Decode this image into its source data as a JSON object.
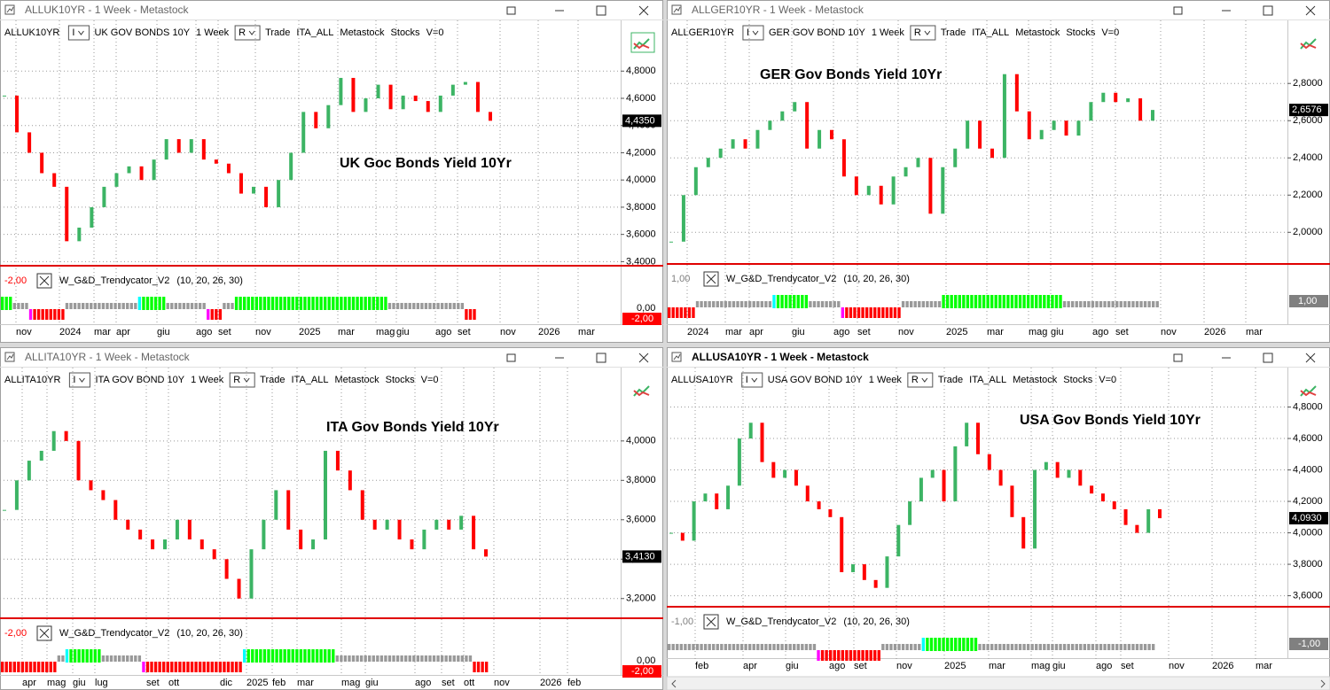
{
  "windows": [
    {
      "title": "ALLUK10YR - 1 Week - Metastock",
      "toolbar": [
        "ALLUK10YR",
        "I",
        "UK GOV BONDS 10Y",
        "1 Week",
        "R",
        "Trade",
        "ITA_ALL",
        "Metastock",
        "Stocks",
        "V=0"
      ],
      "chart_data": {
        "type": "candlestick",
        "annotation": "UK Goc Bonds Yield 10Yr",
        "up_color": "#3cb464",
        "down_color": "#ff0000",
        "closes": [
          4.62,
          4.35,
          4.2,
          4.05,
          3.95,
          3.55,
          3.65,
          3.8,
          3.95,
          4.05,
          4.1,
          4.0,
          4.15,
          4.3,
          4.2,
          4.3,
          4.15,
          4.12,
          4.05,
          3.9,
          3.95,
          3.8,
          4.0,
          4.2,
          4.5,
          4.38,
          4.55,
          4.75,
          4.5,
          4.6,
          4.7,
          4.52,
          4.62,
          4.58,
          4.5,
          4.62,
          4.7,
          4.72,
          4.5,
          4.435
        ],
        "ylim": [
          3.37,
          5.01
        ],
        "yticks": [
          {
            "value": 3.4,
            "label": "3,4000"
          },
          {
            "value": 3.6,
            "label": "3,6000"
          },
          {
            "value": 3.8,
            "label": "3,8000"
          },
          {
            "value": 4.0,
            "label": "4,0000"
          },
          {
            "value": 4.2,
            "label": "4,2000"
          },
          {
            "value": 4.4,
            "label": "4,4000"
          },
          {
            "value": 4.6,
            "label": "4,6000"
          },
          {
            "value": 4.8,
            "label": "4,8000"
          }
        ],
        "last_price": {
          "value": 4.435,
          "label": "4,4350"
        },
        "x_labels": [
          "nov",
          "2024",
          "mar",
          "apr",
          "giu",
          "ago",
          "set",
          "nov",
          "2025",
          "mar",
          "mag",
          "giu",
          "ago",
          "set",
          "nov",
          "2026",
          "mar"
        ],
        "indicator": {
          "left_label": {
            "value": -2,
            "label": "-2,00"
          },
          "name": "W_G&D_Trendycator_V2",
          "params": "(10, 20, 26, 30)",
          "ticks": [
            {
              "value": 0,
              "label": "0,00"
            }
          ],
          "last": {
            "value": -2,
            "label": "-2,00"
          },
          "last_color": "#ff0000",
          "segments": [
            {
              "color": "#00ff00",
              "count": 3
            },
            {
              "color": "#999999",
              "count": 4
            },
            {
              "color": "#ff00ff",
              "count": 1
            },
            {
              "color": "#ff0000",
              "count": 8
            },
            {
              "color": "#999999",
              "count": 18
            },
            {
              "color": "#00ffff",
              "count": 1
            },
            {
              "color": "#00ff00",
              "count": 6
            },
            {
              "color": "#999999",
              "count": 10
            },
            {
              "color": "#ff00ff",
              "count": 1
            },
            {
              "color": "#ff0000",
              "count": 3
            },
            {
              "color": "#999999",
              "count": 3
            },
            {
              "color": "#00ff00",
              "count": 38
            },
            {
              "color": "#999999",
              "count": 19
            },
            {
              "color": "#ff0000",
              "count": 3
            }
          ]
        }
      }
    },
    {
      "title": "ALLGER10YR - 1 Week - Metastock",
      "toolbar": [
        "ALLGER10YR",
        "I",
        "GER GOV BOND 10Y",
        "1 Week",
        "R",
        "Trade",
        "ITA_ALL",
        "Metastock",
        "Stocks",
        "V=0"
      ],
      "chart_data": {
        "type": "candlestick",
        "annotation": "GER Gov Bonds Yield 10Yr",
        "up_color": "#3cb464",
        "down_color": "#ff0000",
        "closes": [
          1.95,
          2.2,
          2.35,
          2.4,
          2.45,
          2.5,
          2.45,
          2.55,
          2.6,
          2.65,
          2.7,
          2.45,
          2.55,
          2.5,
          2.3,
          2.2,
          2.25,
          2.15,
          2.3,
          2.35,
          2.4,
          2.1,
          2.35,
          2.45,
          2.6,
          2.45,
          2.4,
          2.85,
          2.65,
          2.5,
          2.55,
          2.6,
          2.52,
          2.6,
          2.7,
          2.75,
          2.7,
          2.72,
          2.6,
          2.6576
        ],
        "ylim": [
          1.83,
          3.02
        ],
        "yticks": [
          {
            "value": 2.0,
            "label": "2,0000"
          },
          {
            "value": 2.2,
            "label": "2,2000"
          },
          {
            "value": 2.4,
            "label": "2,4000"
          },
          {
            "value": 2.6,
            "label": "2,6000"
          },
          {
            "value": 2.8,
            "label": "2,8000"
          }
        ],
        "last_price": {
          "value": 2.6576,
          "label": "2,6576"
        },
        "x_labels": [
          "2024",
          "mar",
          "apr",
          "giu",
          "ago",
          "set",
          "nov",
          "2025",
          "mar",
          "mag",
          "giu",
          "ago",
          "set",
          "nov",
          "2026",
          "mar"
        ],
        "indicator": {
          "left_label": {
            "value": 1,
            "label": "1,00"
          },
          "name": "W_G&D_Trendycator_V2",
          "params": "(10, 20, 26, 30)",
          "ticks": [],
          "last": {
            "value": 1,
            "label": "1,00"
          },
          "last_color": "#808080",
          "segments": [
            {
              "color": "#ff0000",
              "count": 7
            },
            {
              "color": "#999999",
              "count": 19
            },
            {
              "color": "#00ffff",
              "count": 1
            },
            {
              "color": "#00ff00",
              "count": 8
            },
            {
              "color": "#999999",
              "count": 8
            },
            {
              "color": "#ff00ff",
              "count": 1
            },
            {
              "color": "#ff0000",
              "count": 14
            },
            {
              "color": "#999999",
              "count": 10
            },
            {
              "color": "#00ff00",
              "count": 30
            },
            {
              "color": "#999999",
              "count": 24
            }
          ]
        }
      }
    },
    {
      "title": "ALLITA10YR - 1 Week - Metastock",
      "toolbar": [
        "ALLITA10YR",
        "I",
        "ITA GOV BOND 10Y",
        "1 Week",
        "R",
        "Trade",
        "ITA_ALL",
        "Metastock",
        "Stocks",
        "V=0"
      ],
      "chart_data": {
        "type": "candlestick",
        "annotation": "ITA Gov Bonds Yield 10Yr",
        "up_color": "#3cb464",
        "down_color": "#ff0000",
        "closes": [
          3.65,
          3.8,
          3.9,
          3.95,
          4.05,
          4.0,
          3.8,
          3.75,
          3.7,
          3.6,
          3.55,
          3.5,
          3.45,
          3.5,
          3.6,
          3.5,
          3.45,
          3.4,
          3.3,
          3.2,
          3.45,
          3.6,
          3.75,
          3.55,
          3.45,
          3.5,
          3.95,
          3.85,
          3.75,
          3.6,
          3.55,
          3.6,
          3.5,
          3.45,
          3.55,
          3.6,
          3.55,
          3.62,
          3.45,
          3.413
        ],
        "ylim": [
          3.1,
          4.26
        ],
        "yticks": [
          {
            "value": 3.2,
            "label": "3,2000"
          },
          {
            "value": 3.4,
            "label": "3,4000"
          },
          {
            "value": 3.6,
            "label": "3,6000"
          },
          {
            "value": 3.8,
            "label": "3,8000"
          },
          {
            "value": 4.0,
            "label": "4,0000"
          }
        ],
        "last_price": {
          "value": 3.413,
          "label": "3,4130"
        },
        "x_labels": [
          "apr",
          "mag",
          "giu",
          "lug",
          "set",
          "ott",
          "dic",
          "2025",
          "feb",
          "mar",
          "mag",
          "giu",
          "ago",
          "set",
          "ott",
          "nov",
          "2026",
          "feb"
        ],
        "indicator": {
          "left_label": {
            "value": -2,
            "label": "-2,00"
          },
          "name": "W_G&D_Trendycator_V2",
          "params": "(10, 20, 26, 30)",
          "ticks": [
            {
              "value": 0,
              "label": "0,00"
            }
          ],
          "last": {
            "value": -2,
            "label": "-2,00"
          },
          "last_color": "#ff0000",
          "segments": [
            {
              "color": "#ff0000",
              "count": 14
            },
            {
              "color": "#999999",
              "count": 2
            },
            {
              "color": "#00ffff",
              "count": 1
            },
            {
              "color": "#00ff00",
              "count": 8
            },
            {
              "color": "#999999",
              "count": 10
            },
            {
              "color": "#ff00ff",
              "count": 1
            },
            {
              "color": "#ff0000",
              "count": 24
            },
            {
              "color": "#00ffff",
              "count": 1
            },
            {
              "color": "#00ff00",
              "count": 22
            },
            {
              "color": "#999999",
              "count": 34
            },
            {
              "color": "#ff0000",
              "count": 4
            }
          ]
        }
      }
    },
    {
      "title": "ALLUSA10YR - 1 Week - Metastock",
      "toolbar": [
        "ALLUSA10YR",
        "I",
        "USA GOV BOND 10Y",
        "1 Week",
        "R",
        "Trade",
        "ITA_ALL",
        "Metastock",
        "Stocks",
        "V=0"
      ],
      "chart_data": {
        "type": "candlestick",
        "annotation": "USA Gov Bonds Yield 10Yr",
        "up_color": "#3cb464",
        "down_color": "#ff0000",
        "closes": [
          4.0,
          3.95,
          4.2,
          4.25,
          4.15,
          4.3,
          4.6,
          4.7,
          4.45,
          4.35,
          4.4,
          4.3,
          4.2,
          4.15,
          4.1,
          3.75,
          3.8,
          3.7,
          3.65,
          3.85,
          4.05,
          4.2,
          4.35,
          4.4,
          4.2,
          4.55,
          4.7,
          4.5,
          4.4,
          4.3,
          4.1,
          3.9,
          4.4,
          4.45,
          4.35,
          4.4,
          4.3,
          4.25,
          4.2,
          4.15,
          4.05,
          4.0,
          4.15,
          4.093
        ],
        "ylim": [
          3.53,
          4.91
        ],
        "yticks": [
          {
            "value": 3.6,
            "label": "3,6000"
          },
          {
            "value": 3.8,
            "label": "3,8000"
          },
          {
            "value": 4.0,
            "label": "4,0000"
          },
          {
            "value": 4.2,
            "label": "4,2000"
          },
          {
            "value": 4.4,
            "label": "4,4000"
          },
          {
            "value": 4.6,
            "label": "4,6000"
          },
          {
            "value": 4.8,
            "label": "4,8000"
          }
        ],
        "last_price": {
          "value": 4.093,
          "label": "4,0930"
        },
        "x_labels": [
          "feb",
          "apr",
          "giu",
          "ago",
          "set",
          "nov",
          "2025",
          "mar",
          "mag",
          "giu",
          "ago",
          "set",
          "nov",
          "2026",
          "mar"
        ],
        "indicator": {
          "left_label": {
            "value": -1,
            "label": "-1,00"
          },
          "name": "W_G&D_Trendycator_V2",
          "params": "(10, 20, 26, 30)",
          "ticks": [],
          "last": {
            "value": -1,
            "label": "-1,00"
          },
          "last_color": "#808080",
          "segments": [
            {
              "color": "#999999",
              "count": 37
            },
            {
              "color": "#ff00ff",
              "count": 1
            },
            {
              "color": "#ff0000",
              "count": 15
            },
            {
              "color": "#999999",
              "count": 10
            },
            {
              "color": "#00ffff",
              "count": 1
            },
            {
              "color": "#00ff00",
              "count": 13
            },
            {
              "color": "#999999",
              "count": 44
            }
          ]
        }
      }
    }
  ]
}
